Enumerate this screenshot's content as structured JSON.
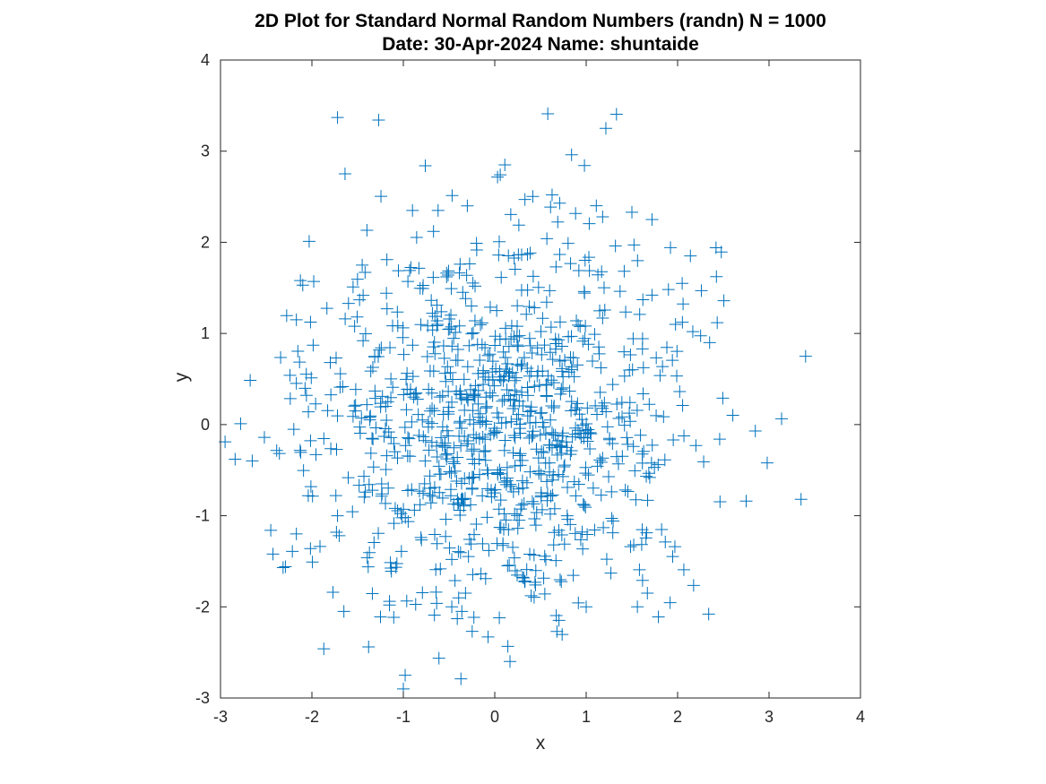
{
  "chart_data": {
    "type": "scatter",
    "title": "2D Plot for Standard Normal Random Numbers (randn) N = 1000",
    "subtitle": "Date: 30-Apr-2024 Name: shuntaide",
    "xlabel": "x",
    "ylabel": "y",
    "xlim": [
      -3,
      4
    ],
    "ylim": [
      -3,
      4
    ],
    "xticks": [
      "-3",
      "-2",
      "-1",
      "0",
      "1",
      "2",
      "3",
      "4"
    ],
    "yticks": [
      "-3",
      "-2",
      "-1",
      "0",
      "1",
      "2",
      "3",
      "4"
    ],
    "grid": false,
    "box": true,
    "marker": "+",
    "marker_color": "#0072BD",
    "n_points": 1000,
    "series": [
      {
        "x": [
          -1.72,
          0.58,
          -0.76,
          0.84,
          0.06,
          0.11,
          0.33,
          0.71,
          -0.3,
          -0.62,
          1.5,
          1.72,
          -0.9,
          -0.67,
          1.18,
          -2.03,
          2.42,
          1.32,
          0.57,
          -0.2,
          2.14,
          2.05,
          2.26,
          -1.45,
          -1.98,
          -2.1,
          -1.55,
          -1.6,
          -2.17,
          -1.18,
          0.67,
          0.92,
          -0.95,
          -0.51,
          1.72,
          1.62,
          2.35,
          3.4,
          -0.48,
          -2.24,
          -2.06,
          -2.78,
          -2.95,
          -2.52,
          -2.84,
          2.85,
          2.98,
          2.46,
          2.2,
          2.75,
          3.35,
          -2.04,
          -2.45,
          -2.17,
          -2.29,
          -1.77,
          -1.87,
          -1.72,
          -1.38,
          -1.25,
          -0.98,
          -1.0,
          -0.37,
          -0.41,
          -0.36,
          1.56,
          1.79,
          2.34,
          1.97,
          0.68,
          -0.47,
          0.14,
          -0.1,
          0.44,
          -0.32,
          -0.66,
          0.05,
          1.0,
          1.27,
          1.52
        ],
        "y": [
          3.37,
          3.41,
          2.84,
          2.96,
          2.74,
          2.85,
          2.47,
          2.43,
          2.4,
          2.35,
          2.33,
          2.25,
          2.35,
          2.12,
          2.28,
          2.01,
          1.94,
          1.96,
          2.04,
          1.99,
          1.85,
          1.55,
          1.47,
          1.75,
          1.57,
          1.53,
          1.51,
          1.33,
          1.15,
          1.81,
          1.73,
          1.69,
          1.57,
          1.64,
          1.42,
          1.37,
          0.9,
          0.75,
          1.2,
          0.54,
          0.32,
          0.01,
          -0.19,
          -0.14,
          -0.38,
          -0.07,
          -0.42,
          -0.16,
          -0.23,
          -0.84,
          -0.82,
          -0.78,
          -1.16,
          -1.2,
          -1.56,
          -1.84,
          -2.46,
          -1.0,
          -2.44,
          -2.11,
          -2.75,
          -2.9,
          -2.79,
          -2.13,
          -2.05,
          -2.0,
          -2.11,
          -2.08,
          -1.34,
          -2.27,
          -1.48,
          -1.55,
          -1.69,
          -1.73,
          -1.85,
          -2.09,
          -2.12,
          -2.0,
          -1.63,
          -1.32
        ]
      }
    ]
  }
}
